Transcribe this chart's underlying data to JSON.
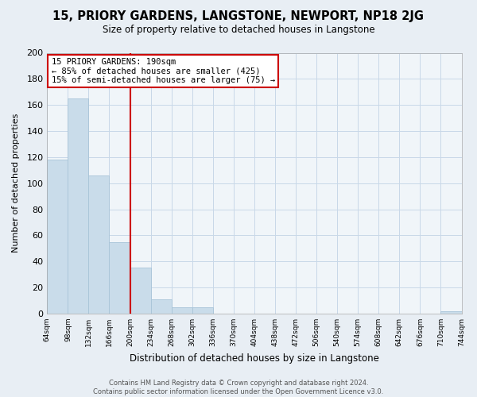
{
  "title": "15, PRIORY GARDENS, LANGSTONE, NEWPORT, NP18 2JG",
  "subtitle": "Size of property relative to detached houses in Langstone",
  "bar_values": [
    118,
    165,
    106,
    55,
    35,
    11,
    5,
    5,
    0,
    0,
    0,
    0,
    0,
    0,
    0,
    0,
    0,
    0,
    0,
    2
  ],
  "bar_labels": [
    "64sqm",
    "98sqm",
    "132sqm",
    "166sqm",
    "200sqm",
    "234sqm",
    "268sqm",
    "302sqm",
    "336sqm",
    "370sqm",
    "404sqm",
    "438sqm",
    "472sqm",
    "506sqm",
    "540sqm",
    "574sqm",
    "608sqm",
    "642sqm",
    "676sqm",
    "710sqm",
    "744sqm"
  ],
  "xlabel": "Distribution of detached houses by size in Langstone",
  "ylabel": "Number of detached properties",
  "ylim": [
    0,
    200
  ],
  "yticks": [
    0,
    20,
    40,
    60,
    80,
    100,
    120,
    140,
    160,
    180,
    200
  ],
  "bar_color": "#c9dcea",
  "bar_edge_color": "#a8c4d8",
  "vline_x": 4,
  "vline_color": "#cc0000",
  "annotation_title": "15 PRIORY GARDENS: 190sqm",
  "annotation_line1": "← 85% of detached houses are smaller (425)",
  "annotation_line2": "15% of semi-detached houses are larger (75) →",
  "annotation_box_color": "#ffffff",
  "annotation_border_color": "#cc0000",
  "footer_line1": "Contains HM Land Registry data © Crown copyright and database right 2024.",
  "footer_line2": "Contains public sector information licensed under the Open Government Licence v3.0.",
  "bg_color": "#e8eef4",
  "plot_bg_color": "#f0f5f9",
  "grid_color": "#c8d8e8"
}
